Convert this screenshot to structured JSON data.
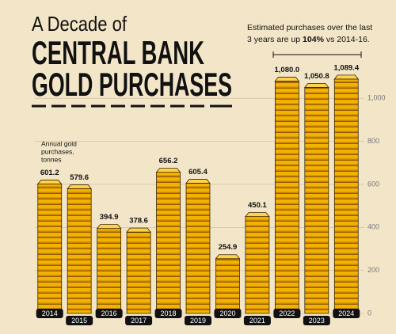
{
  "chart_data": {
    "type": "bar",
    "title_top": "A Decade of",
    "title_lines": [
      "CENTRAL BANK",
      "GOLD PURCHASES"
    ],
    "annotation": {
      "line1": "Estimated purchases over the last",
      "line2_start": "3 years are up",
      "highlight": "104%",
      "line2_end": "vs 2014-16."
    },
    "y_label": [
      "Annual gold",
      "purchases,",
      "tonnes"
    ],
    "categories": [
      "2014",
      "2015",
      "2016",
      "2017",
      "2018",
      "2019",
      "2020",
      "2021",
      "2022",
      "2023",
      "2024"
    ],
    "values": [
      601.2,
      579.6,
      394.9,
      378.6,
      656.2,
      605.4,
      254.9,
      450.1,
      1080.0,
      1050.8,
      1089.4
    ],
    "value_labels": [
      "601.2",
      "579.6",
      "394.9",
      "378.6",
      "656.2",
      "605.4",
      "254.9",
      "450.1",
      "1,080.0",
      "1,050.8",
      "1,089.4"
    ],
    "color": "#f2b300",
    "ylim": [
      0,
      1100
    ],
    "yticks": [
      0,
      200,
      400,
      600,
      800,
      {
        "value": 1000,
        "label": "1,000"
      }
    ],
    "grid": true
  }
}
